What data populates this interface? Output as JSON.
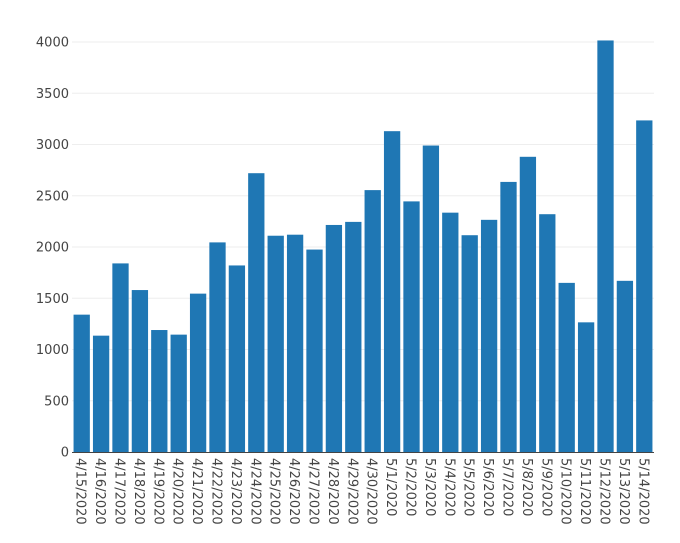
{
  "chart_data": {
    "type": "bar",
    "title": "",
    "xlabel": "",
    "ylabel": "",
    "ylim": [
      0,
      4000
    ],
    "yticks": [
      0,
      500,
      1000,
      1500,
      2000,
      2500,
      3000,
      3500,
      4000
    ],
    "grid": true,
    "bar_color": "#1f77b4",
    "categories": [
      "4/15/2020",
      "4/16/2020",
      "4/17/2020",
      "4/18/2020",
      "4/19/2020",
      "4/20/2020",
      "4/21/2020",
      "4/22/2020",
      "4/23/2020",
      "4/24/2020",
      "4/25/2020",
      "4/26/2020",
      "4/27/2020",
      "4/28/2020",
      "4/29/2020",
      "4/30/2020",
      "5/1/2020",
      "5/2/2020",
      "5/3/2020",
      "5/4/2020",
      "5/5/2020",
      "5/6/2020",
      "5/7/2020",
      "5/8/2020",
      "5/9/2020",
      "5/10/2020",
      "5/11/2020",
      "5/12/2020",
      "5/13/2020",
      "5/14/2020"
    ],
    "values": [
      1340,
      1135,
      1840,
      1580,
      1190,
      1145,
      1545,
      2045,
      1820,
      2720,
      2110,
      2120,
      1975,
      2215,
      2245,
      2555,
      3130,
      2445,
      2990,
      2335,
      2115,
      2265,
      2635,
      2880,
      2320,
      1650,
      1265,
      4015,
      1670,
      3235
    ]
  }
}
